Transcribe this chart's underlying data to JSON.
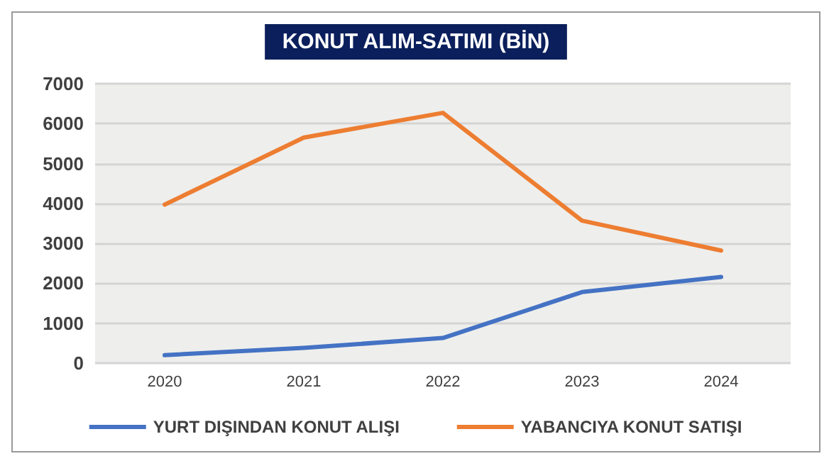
{
  "chart_data": {
    "type": "line",
    "title": "KONUT ALIM-SATIMI (BİN)",
    "categories": [
      "2020",
      "2021",
      "2022",
      "2023",
      "2024"
    ],
    "series": [
      {
        "name": "YURT DIŞINDAN KONUT ALIŞI",
        "color": "#4472c4",
        "values": [
          200,
          380,
          630,
          1780,
          2160
        ]
      },
      {
        "name": "YABANCIYA KONUT SATIŞI",
        "color": "#ed7d31",
        "values": [
          3970,
          5650,
          6270,
          3570,
          2820
        ]
      }
    ],
    "ylim": [
      0,
      7000
    ],
    "yticks": [
      0,
      1000,
      2000,
      3000,
      4000,
      5000,
      6000,
      7000
    ],
    "grid": "y",
    "legend": "bottom",
    "marker": "none",
    "line_style": "solid"
  }
}
